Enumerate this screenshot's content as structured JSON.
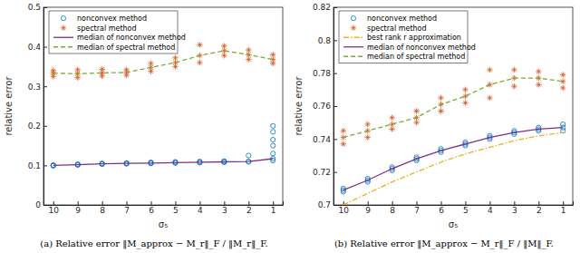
{
  "chart_data": [
    {
      "type": "line",
      "title": "(a) Relative error ‖M_approx − M_r‖_F / ‖M_r‖_F.",
      "x_label": "σ₅",
      "y_label": "relative error",
      "xlim": [
        10.4,
        0.6
      ],
      "xticks": [
        10,
        9,
        8,
        7,
        6,
        5,
        4,
        3,
        2,
        1
      ],
      "ylim": [
        0,
        0.5
      ],
      "yticks": [
        0,
        0.1,
        0.2,
        0.3,
        0.4,
        0.5
      ],
      "grid": false,
      "legend": "upper left",
      "series": [
        {
          "name": "nonconvex method",
          "type": "scatter",
          "marker": "circle",
          "color": "#0072bd",
          "x": [
            10,
            10,
            10,
            9,
            9,
            9,
            8,
            8,
            8,
            7,
            7,
            7,
            6,
            6,
            6,
            5,
            5,
            5,
            4,
            4,
            4,
            3,
            3,
            3,
            2,
            2,
            2,
            1,
            1,
            1,
            1,
            1,
            1,
            1
          ],
          "values": [
            0.099,
            0.1,
            0.101,
            0.101,
            0.102,
            0.103,
            0.103,
            0.104,
            0.105,
            0.104,
            0.105,
            0.106,
            0.105,
            0.106,
            0.108,
            0.106,
            0.107,
            0.109,
            0.107,
            0.108,
            0.11,
            0.108,
            0.109,
            0.111,
            0.109,
            0.11,
            0.125,
            0.112,
            0.117,
            0.13,
            0.15,
            0.165,
            0.185,
            0.2
          ]
        },
        {
          "name": "spectral method",
          "type": "scatter",
          "marker": "asterisk",
          "color": "#d95319",
          "x": [
            10,
            10,
            10,
            9,
            9,
            9,
            8,
            8,
            8,
            7,
            7,
            7,
            6,
            6,
            6,
            5,
            5,
            5,
            4,
            4,
            4,
            3,
            3,
            3,
            2,
            2,
            2,
            1,
            1,
            1
          ],
          "values": [
            0.325,
            0.333,
            0.34,
            0.322,
            0.332,
            0.342,
            0.326,
            0.334,
            0.343,
            0.328,
            0.335,
            0.342,
            0.338,
            0.348,
            0.358,
            0.35,
            0.36,
            0.372,
            0.36,
            0.378,
            0.405,
            0.378,
            0.39,
            0.402,
            0.368,
            0.38,
            0.392,
            0.358,
            0.368,
            0.38
          ]
        },
        {
          "name": "median of nonconvex method",
          "type": "line",
          "line_style": "solid",
          "color": "#7e2f8e",
          "x": [
            10,
            9,
            8,
            7,
            6,
            5,
            4,
            3,
            2,
            1
          ],
          "values": [
            0.1,
            0.102,
            0.104,
            0.105,
            0.106,
            0.107,
            0.108,
            0.109,
            0.11,
            0.117
          ]
        },
        {
          "name": "median of spectral method",
          "type": "line",
          "line_style": "dashed",
          "color": "#77ac30",
          "x": [
            10,
            9,
            8,
            7,
            6,
            5,
            4,
            3,
            2,
            1
          ],
          "values": [
            0.333,
            0.332,
            0.334,
            0.335,
            0.348,
            0.36,
            0.378,
            0.39,
            0.38,
            0.368
          ]
        }
      ]
    },
    {
      "type": "line",
      "title": "(b) Relative error ‖M_approx − M_r‖_F / ‖M‖_F.",
      "x_label": "σ₅",
      "y_label": "relative error",
      "xlim": [
        10.4,
        0.6
      ],
      "xticks": [
        10,
        9,
        8,
        7,
        6,
        5,
        4,
        3,
        2,
        1
      ],
      "ylim": [
        0.7,
        0.82
      ],
      "yticks": [
        0.7,
        0.72,
        0.74,
        0.76,
        0.78,
        0.8,
        0.82
      ],
      "grid": false,
      "legend": "upper left",
      "series": [
        {
          "name": "nonconvex method",
          "type": "scatter",
          "marker": "circle",
          "color": "#0072bd",
          "x": [
            10,
            10,
            10,
            9,
            9,
            9,
            8,
            8,
            8,
            7,
            7,
            7,
            6,
            6,
            6,
            5,
            5,
            5,
            4,
            4,
            4,
            3,
            3,
            3,
            2,
            2,
            2,
            1,
            1,
            1
          ],
          "values": [
            0.708,
            0.709,
            0.71,
            0.714,
            0.715,
            0.716,
            0.721,
            0.722,
            0.723,
            0.727,
            0.728,
            0.729,
            0.732,
            0.733,
            0.734,
            0.736,
            0.737,
            0.738,
            0.74,
            0.741,
            0.742,
            0.743,
            0.744,
            0.745,
            0.745,
            0.746,
            0.747,
            0.745,
            0.747,
            0.749
          ]
        },
        {
          "name": "spectral method",
          "type": "scatter",
          "marker": "asterisk",
          "color": "#d95319",
          "x": [
            10,
            10,
            10,
            9,
            9,
            9,
            8,
            8,
            8,
            7,
            7,
            7,
            6,
            6,
            6,
            5,
            5,
            5,
            4,
            4,
            4,
            3,
            3,
            3,
            2,
            2,
            2,
            1,
            1,
            1
          ],
          "values": [
            0.737,
            0.741,
            0.745,
            0.741,
            0.745,
            0.749,
            0.746,
            0.749,
            0.753,
            0.75,
            0.753,
            0.757,
            0.757,
            0.761,
            0.765,
            0.762,
            0.766,
            0.77,
            0.765,
            0.773,
            0.782,
            0.772,
            0.777,
            0.782,
            0.773,
            0.777,
            0.781,
            0.771,
            0.775,
            0.779
          ]
        },
        {
          "name": "best rank r approximation",
          "type": "line",
          "line_style": "dashdot",
          "color": "#edb120",
          "x": [
            10,
            9,
            8,
            7,
            6,
            5,
            4,
            3,
            2,
            1
          ],
          "values": [
            0.7,
            0.707,
            0.714,
            0.72,
            0.726,
            0.731,
            0.735,
            0.739,
            0.742,
            0.744
          ]
        },
        {
          "name": "median of nonconvex method",
          "type": "line",
          "line_style": "solid",
          "color": "#7e2f8e",
          "x": [
            10,
            9,
            8,
            7,
            6,
            5,
            4,
            3,
            2,
            1
          ],
          "values": [
            0.709,
            0.715,
            0.722,
            0.728,
            0.733,
            0.737,
            0.741,
            0.744,
            0.746,
            0.747
          ]
        },
        {
          "name": "median of spectral method",
          "type": "line",
          "line_style": "dashed",
          "color": "#77ac30",
          "x": [
            10,
            9,
            8,
            7,
            6,
            5,
            4,
            3,
            2,
            1
          ],
          "values": [
            0.741,
            0.745,
            0.749,
            0.753,
            0.761,
            0.766,
            0.773,
            0.777,
            0.777,
            0.775
          ]
        }
      ]
    }
  ]
}
